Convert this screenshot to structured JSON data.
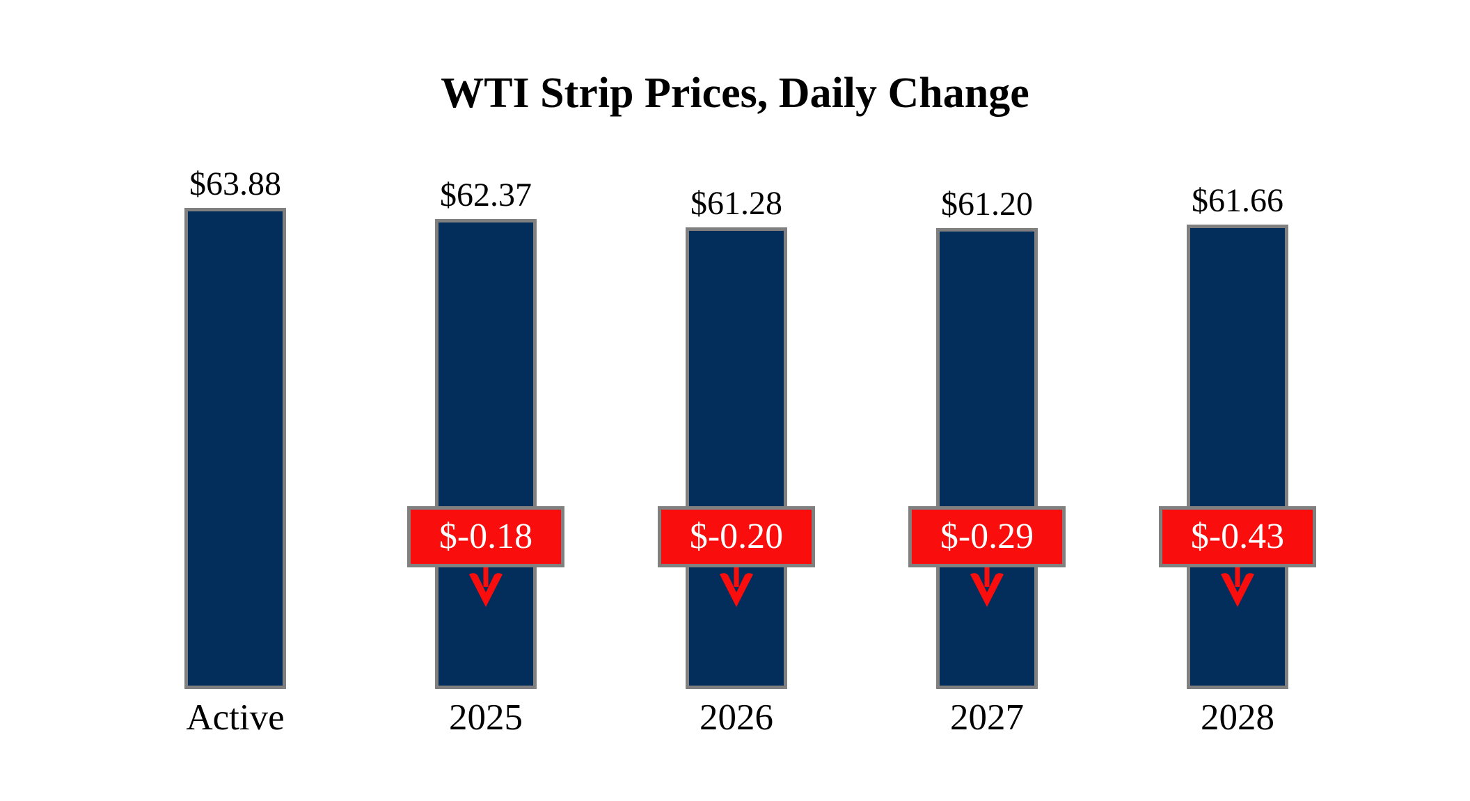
{
  "chart_data": {
    "type": "bar",
    "title": "WTI Strip Prices, Daily Change",
    "categories": [
      "Active",
      "2025",
      "2026",
      "2027",
      "2028"
    ],
    "values": [
      63.88,
      62.37,
      61.28,
      61.2,
      61.66
    ],
    "value_labels": [
      "$63.88",
      "$62.37",
      "$61.28",
      "$61.20",
      "$61.66"
    ],
    "daily_changes": [
      null,
      -0.18,
      -0.2,
      -0.29,
      -0.43
    ],
    "change_labels": [
      null,
      "$-0.18",
      "$-0.20",
      "$-0.29",
      "$-0.43"
    ],
    "ylim": [
      0,
      63.88
    ],
    "grid": false,
    "legend": false,
    "xlabel": "",
    "ylabel": "",
    "colors": {
      "bar_fill": "#032e5c",
      "bar_border": "#808080",
      "badge_fill": "#f90d0d",
      "badge_border": "#808080",
      "badge_text": "#ffffff",
      "arrow": "#f90d0d",
      "text": "#000000",
      "background": "#ffffff"
    }
  }
}
